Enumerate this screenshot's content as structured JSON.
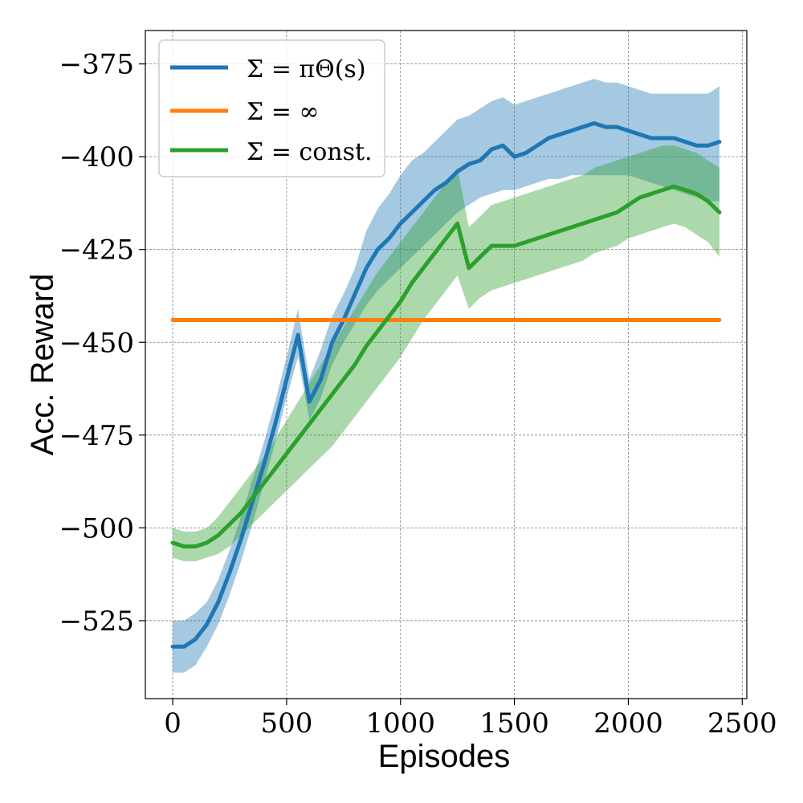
{
  "chart_data": {
    "type": "line",
    "title": "",
    "xlabel": "Episodes",
    "ylabel": "Acc. Reward",
    "xlim": [
      -120,
      2520
    ],
    "ylim": [
      -546,
      -366
    ],
    "grid": true,
    "legend_position": "top-left",
    "x_ticks": [
      0,
      500,
      1000,
      1500,
      2000,
      2500
    ],
    "x_tick_labels": [
      "0",
      "500",
      "1000",
      "1500",
      "2000",
      "2500"
    ],
    "y_ticks": [
      -375,
      -400,
      -425,
      -450,
      -475,
      -500,
      -525
    ],
    "y_tick_labels": [
      "−375",
      "−400",
      "−425",
      "−450",
      "−475",
      "−500",
      "−525"
    ],
    "series": [
      {
        "name": "Σ = π_Θ(s)",
        "legend_label": "Σ = πΘ(s)",
        "color": "#1f77b4",
        "x": [
          0,
          50,
          100,
          150,
          200,
          250,
          300,
          350,
          400,
          450,
          500,
          550,
          600,
          650,
          700,
          750,
          800,
          850,
          900,
          950,
          1000,
          1050,
          1100,
          1150,
          1200,
          1250,
          1300,
          1350,
          1400,
          1450,
          1500,
          1550,
          1600,
          1650,
          1700,
          1750,
          1800,
          1850,
          1900,
          1950,
          2000,
          2050,
          2100,
          2150,
          2200,
          2250,
          2300,
          2350,
          2400
        ],
        "mean": [
          -532,
          -532,
          -530,
          -526,
          -520,
          -512,
          -503,
          -493,
          -483,
          -472,
          -460,
          -448,
          -466,
          -460,
          -450,
          -444,
          -437,
          -430,
          -425,
          -422,
          -418,
          -415,
          -412,
          -409,
          -407,
          -404,
          -402,
          -401,
          -398,
          -397,
          -400,
          -399,
          -397,
          -395,
          -394,
          -393,
          -392,
          -391,
          -392,
          -392,
          -393,
          -394,
          -395,
          -395,
          -395,
          -396,
          -397,
          -397,
          -396
        ],
        "lower": [
          -539,
          -539,
          -537,
          -532,
          -526,
          -518,
          -509,
          -499,
          -488,
          -477,
          -465,
          -454,
          -471,
          -465,
          -456,
          -450,
          -445,
          -440,
          -436,
          -433,
          -430,
          -427,
          -424,
          -421,
          -418,
          -415,
          -413,
          -411,
          -410,
          -409,
          -409,
          -408,
          -407,
          -406,
          -406,
          -405,
          -405,
          -405,
          -405,
          -405,
          -405,
          -406,
          -407,
          -408,
          -409,
          -410,
          -411,
          -412,
          -412
        ],
        "upper": [
          -525,
          -525,
          -523,
          -520,
          -514,
          -506,
          -497,
          -487,
          -477,
          -466,
          -454,
          -441,
          -460,
          -452,
          -443,
          -437,
          -430,
          -420,
          -414,
          -410,
          -405,
          -401,
          -399,
          -396,
          -393,
          -390,
          -389,
          -387,
          -385,
          -384,
          -386,
          -385,
          -384,
          -383,
          -382,
          -381,
          -380,
          -379,
          -380,
          -380,
          -381,
          -382,
          -383,
          -383,
          -383,
          -383,
          -383,
          -383,
          -381
        ]
      },
      {
        "name": "Σ = ∞",
        "legend_label": "Σ = ∞",
        "color": "#ff7f0e",
        "x": [
          0,
          2400
        ],
        "mean": [
          -444,
          -444
        ]
      },
      {
        "name": "Σ = const.",
        "legend_label": "Σ = const.",
        "color": "#2ca02c",
        "x": [
          0,
          50,
          100,
          150,
          200,
          250,
          300,
          350,
          400,
          450,
          500,
          550,
          600,
          650,
          700,
          750,
          800,
          850,
          900,
          950,
          1000,
          1050,
          1100,
          1150,
          1200,
          1250,
          1300,
          1350,
          1400,
          1450,
          1500,
          1550,
          1600,
          1650,
          1700,
          1750,
          1800,
          1850,
          1900,
          1950,
          2000,
          2050,
          2100,
          2150,
          2200,
          2250,
          2300,
          2350,
          2400
        ],
        "mean": [
          -504,
          -505,
          -505,
          -504,
          -502,
          -499,
          -496,
          -492,
          -488,
          -484,
          -480,
          -476,
          -472,
          -468,
          -464,
          -460,
          -456,
          -451,
          -447,
          -443,
          -439,
          -434,
          -430,
          -426,
          -422,
          -418,
          -430,
          -427,
          -424,
          -424,
          -424,
          -423,
          -422,
          -421,
          -420,
          -419,
          -418,
          -417,
          -416,
          -415,
          -413,
          -411,
          -410,
          -409,
          -408,
          -409,
          -410,
          -412,
          -415
        ],
        "lower": [
          -508,
          -509,
          -509,
          -508,
          -507,
          -505,
          -502,
          -499,
          -496,
          -493,
          -490,
          -487,
          -484,
          -481,
          -478,
          -474,
          -470,
          -466,
          -462,
          -458,
          -454,
          -449,
          -444,
          -440,
          -436,
          -432,
          -441,
          -438,
          -436,
          -435,
          -434,
          -433,
          -432,
          -431,
          -430,
          -429,
          -428,
          -426,
          -425,
          -424,
          -422,
          -421,
          -420,
          -419,
          -418,
          -419,
          -421,
          -423,
          -427
        ],
        "upper": [
          -500,
          -501,
          -501,
          -500,
          -497,
          -493,
          -489,
          -485,
          -481,
          -476,
          -471,
          -466,
          -461,
          -456,
          -451,
          -446,
          -441,
          -436,
          -431,
          -427,
          -423,
          -419,
          -415,
          -411,
          -407,
          -403,
          -419,
          -416,
          -413,
          -412,
          -411,
          -410,
          -409,
          -408,
          -407,
          -406,
          -405,
          -403,
          -402,
          -401,
          -400,
          -399,
          -398,
          -397,
          -397,
          -398,
          -399,
          -401,
          -403
        ]
      }
    ]
  }
}
